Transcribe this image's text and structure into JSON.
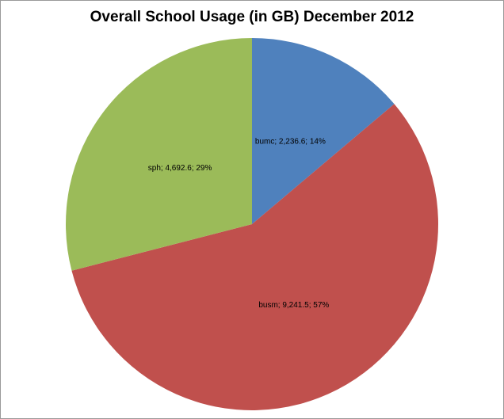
{
  "chart_data": {
    "type": "pie",
    "title": "Overall School Usage (in GB) December 2012",
    "categories": [
      "bumc",
      "busm",
      "sph"
    ],
    "values": [
      2236.6,
      9241.5,
      4692.6
    ],
    "value_labels": [
      "bumc; 2,236.6; 14%",
      "busm; 9,241.5; 57%",
      "sph; 4,692.6; 29%"
    ],
    "colors": [
      "#4f81bd",
      "#c0504d",
      "#9bbb59"
    ]
  }
}
